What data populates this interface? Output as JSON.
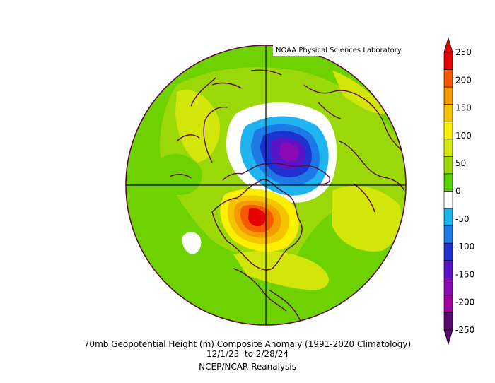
{
  "credit": "NOAA Physical Sciences Laboratory",
  "caption": {
    "line1": "70mb Geopotential Height (m) Composite Anomaly (1991-2020 Climatology)",
    "date_start": "12/1/23",
    "date_sep": "to",
    "date_end": "2/28/24",
    "line3": "NCEP/NCAR Reanalysis"
  },
  "legend": {
    "labels": [
      "250",
      "200",
      "150",
      "100",
      "50",
      "0",
      "-50",
      "-100",
      "-150",
      "-200",
      "-250"
    ],
    "colors": [
      "#E60000",
      "#F55A00",
      "#F59A00",
      "#F5C400",
      "#FAF000",
      "#D2E60A",
      "#9ED60A",
      "#5AD200",
      "#FFFFFF",
      "#1EB4F0",
      "#1E78E6",
      "#1E32D2",
      "#5A14C8",
      "#8C0AB4",
      "#A0009B",
      "#5A0A6E"
    ]
  },
  "map": {
    "background_color": "#9ED60A",
    "coast_color": "#5A0A3C"
  }
}
